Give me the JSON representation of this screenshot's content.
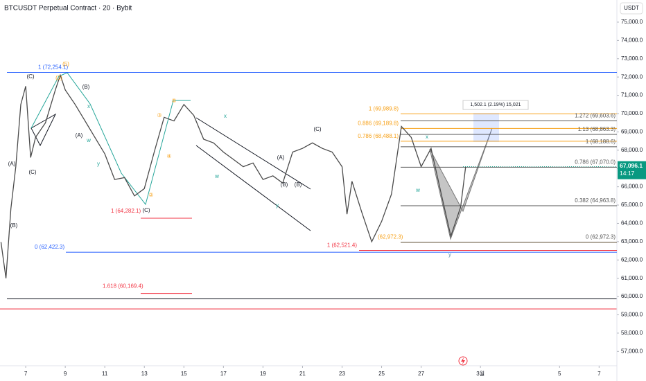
{
  "chart_data": {
    "type": "line",
    "title": "BTCUSDT Perpetual Contract · 20 · Bybit",
    "y_axis_unit": "USDT",
    "color": "#4a4a4a",
    "x": [
      5.75,
      6.0,
      6.25,
      6.5,
      6.75,
      7.0,
      7.25,
      7.5,
      8.0,
      8.5,
      8.75,
      9.0,
      9.5,
      10.0,
      10.5,
      11.0,
      11.5,
      12.0,
      12.5,
      13.0,
      13.5,
      14.0,
      14.5,
      15.0,
      15.5,
      16.0,
      16.5,
      17.0,
      17.5,
      18.0,
      18.5,
      19.0,
      19.5,
      20.0,
      20.5,
      21.0,
      21.5,
      22.0,
      22.5,
      23.0,
      23.25,
      23.5,
      24.0,
      24.5,
      25.0,
      25.5,
      26.0,
      26.5,
      27.0,
      27.5,
      28.0,
      28.5,
      29.0,
      29.25
    ],
    "values": [
      62980,
      61000,
      64800,
      67100,
      70500,
      71500,
      67600,
      68700,
      69500,
      71300,
      72100,
      71300,
      70500,
      69600,
      68700,
      67800,
      66400,
      66500,
      65500,
      65900,
      67900,
      69800,
      69600,
      70500,
      69900,
      68600,
      68400,
      67900,
      67500,
      67100,
      67300,
      66400,
      66600,
      66200,
      67900,
      68100,
      68400,
      68100,
      67900,
      67100,
      64500,
      66300,
      64600,
      63000,
      64100,
      65600,
      69300,
      68700,
      67100,
      68100,
      65700,
      63300,
      64900,
      67096.1
    ],
    "xlim": [
      5.7,
      36.9
    ],
    "xticks": [
      7,
      9,
      11,
      13,
      15,
      17,
      19,
      21,
      23,
      25,
      27,
      {
        "value": 30,
        "label": "3월"
      },
      {
        "value": 34,
        "label": "5"
      },
      {
        "value": 36,
        "label": "7"
      }
    ],
    "ylim": [
      56330,
      76210
    ],
    "yticks": [
      {
        "value": 57000,
        "label": "57,000.0"
      },
      {
        "value": 58000,
        "label": "58,000.0"
      },
      {
        "value": 59000,
        "label": "59,000.0"
      },
      {
        "value": 60000,
        "label": "60,000.0"
      },
      {
        "value": 61000,
        "label": "61,000.0"
      },
      {
        "value": 62000,
        "label": "62,000.0"
      },
      {
        "value": 63000,
        "label": "63,000.0"
      },
      {
        "value": 64000,
        "label": "64,000.0"
      },
      {
        "value": 65000,
        "label": "65,000.0"
      },
      {
        "value": 66000,
        "label": "66,000.0"
      },
      {
        "value": 67000,
        "label": "67,000.0"
      },
      {
        "value": 68000,
        "label": "68,000.0"
      },
      {
        "value": 69000,
        "label": "69,000.0"
      },
      {
        "value": 70000,
        "label": "70,000.0"
      },
      {
        "value": 71000,
        "label": "71,000.0"
      },
      {
        "value": 72000,
        "label": "72,000.0"
      },
      {
        "value": 73000,
        "label": "73,000.0"
      },
      {
        "value": 74000,
        "label": "74,000.0"
      },
      {
        "value": 75000,
        "label": "75,000.0"
      }
    ],
    "price_tag": {
      "value": 67096.1,
      "label": "67,096.1",
      "timer": "14:17",
      "color": "#089981"
    },
    "levels": [
      {
        "value": 72254.1,
        "label": "1 (72,254.1)",
        "color": "#2962ff"
      },
      {
        "value": 62422.3,
        "label": "0 (62,422.3)",
        "color": "#2962ff"
      },
      {
        "value": 64282.1,
        "label": "1 (64,282.1)",
        "color": "#f23645"
      },
      {
        "value": 60169.4,
        "label": "1.618 (60,169.4)",
        "color": "#f23645"
      },
      {
        "value": 69989.8,
        "label": "1 (69,989.8)",
        "color": "#f7a21b"
      },
      {
        "value": 69189.8,
        "label": "0.886 (69,189.8)",
        "color": "#f7a21b"
      },
      {
        "value": 68488.1,
        "label": "0.786 (68,488.1)",
        "color": "#f7a21b"
      },
      {
        "value": 62521.4,
        "label": "1 (62,521.4)",
        "color": "#f23645"
      },
      {
        "value": 62972.3,
        "label": "(62,972.3)",
        "color": "#f7a21b"
      },
      {
        "value": 69603.6,
        "label": "1.272 (69,603.6)",
        "color": "#555555"
      },
      {
        "value": 68863.3,
        "label": "1.13 (68,863.3)",
        "color": "#555555"
      },
      {
        "value": 68188.6,
        "label": "1 (68,188.6)",
        "color": "#555555"
      },
      {
        "value": 67070.0,
        "label": "0.786 (67,070.0)",
        "color": "#555555"
      },
      {
        "value": 64963.8,
        "label": "0.382 (64,963.8)",
        "color": "#555555"
      },
      {
        "value": 62972.3,
        "label": "0 (62,972.3)",
        "color": "#555555"
      }
    ],
    "measure_label": "1,502.1 (2.19%) 15,021",
    "annotations": [
      "(C)",
      "(B)",
      "(A)",
      "(C)",
      "(3)",
      "(5)",
      "(B)",
      "(A)",
      "w",
      "x",
      "y",
      "③",
      "⑤",
      "④",
      "②",
      "(C)",
      "x",
      "w",
      "y",
      "(C)",
      "(A)",
      "(B)",
      "(B)",
      "x",
      "w",
      "y"
    ]
  }
}
